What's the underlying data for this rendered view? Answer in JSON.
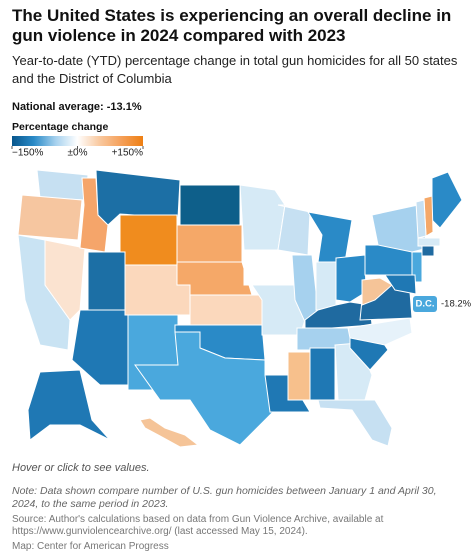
{
  "title": "The United States is experiencing an overall decline in gun violence in 2024 compared with 2023",
  "subtitle": "Year-to-date (YTD) percentage change in total gun homicides for all 50 states and the District of Columbia",
  "national_average": "National average: -13.1%",
  "legend": {
    "title": "Percentage change",
    "range": [
      -150,
      150
    ],
    "ticks": [
      {
        "value": -150,
        "label": "−150%"
      },
      {
        "value": 0,
        "label": "±0%"
      },
      {
        "value": 150,
        "label": "+150%"
      }
    ],
    "colors": [
      "#08568c",
      "#2a8ac7",
      "#a6d1ee",
      "#ffffff",
      "#f9c9a0",
      "#f5a05a",
      "#ee7f12"
    ]
  },
  "map": {
    "region_colors": [
      "#c6e0f2",
      "#f6c6a0",
      "#c9e3f3",
      "#fbe3d0",
      "#f5a56a",
      "#1c6fa5",
      "#f08c1e",
      "#1c6fa5",
      "#1f78b4",
      "#fbd8bc",
      "#4aa8dd",
      "#0e5f8a",
      "#f5a868",
      "#f5a868",
      "#fbd8bc",
      "#2a8ac7",
      "#4aa8dd",
      "#d6eaf6",
      "#ffffff",
      "#d6eaf6",
      "#ffffff",
      "#1f78b4",
      "#c6e0f2",
      "#a6d1ee",
      "#2a8ac7",
      "#d6eaf6",
      "#2a8ac7",
      "#1f6aa0",
      "#a6d1ee",
      "#f7c08c",
      "#1f78b4",
      "#d6eaf6",
      "#c6e0f2",
      "#1f78b4",
      "#e6f2fa",
      "#1f6aa0",
      "#f5c498",
      "#2a8ac7",
      "#a6d1ee",
      "#4aa8dd",
      "#2a8ac7",
      "#f5a868",
      "#c6e0f2",
      "#d6eaf6",
      "#1f6aa0",
      "#1f78b4",
      "#1f78b4",
      "#f5c498"
    ],
    "dc": {
      "label": "D.C.",
      "value": -18.2,
      "value_label": "-18.2%",
      "color": "#4aa8dd"
    }
  },
  "footer": {
    "hint": "Hover or click to see values.",
    "note": "Note: Data shown compare number of U.S. gun homicides between January 1 and April 30, 2024, to the same period in 2023.",
    "source": "Source: Author's calculations based on data from Gun Violence Archive, available at https://www.gunviolencearchive.org/ (last accessed May 15, 2024).",
    "credit": "Map: Center for American Progress"
  }
}
